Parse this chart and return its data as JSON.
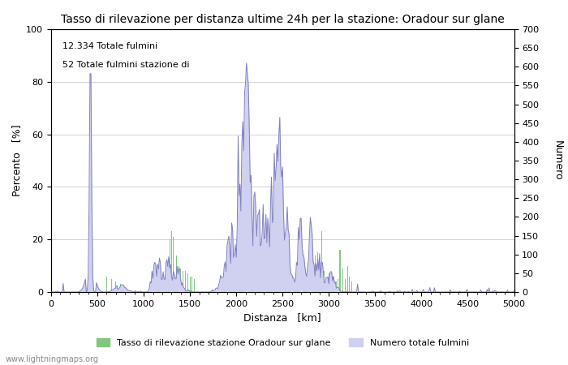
{
  "title": "Tasso di rilevazione per distanza ultime 24h per la stazione: Oradour sur glane",
  "xlabel": "Distanza   [km]",
  "ylabel_left": "Percento   [%]",
  "ylabel_right": "Numero",
  "annotation1": "12.334 Totale fulmini",
  "annotation2": "52 Totale fulmini stazione di",
  "watermark": "www.lightningmaps.org",
  "legend_green": "Tasso di rilevazione stazione Oradour sur glane",
  "legend_blue": "Numero totale fulmini",
  "xlim": [
    0,
    5000
  ],
  "ylim_left": [
    0,
    100
  ],
  "ylim_right": [
    0,
    700
  ],
  "background_color": "#ffffff",
  "grid_color": "#c0c0c0",
  "blue_fill_color": "#d0d0f0",
  "blue_line_color": "#8080c0",
  "green_bar_color": "#80c880",
  "title_fontsize": 10,
  "axis_fontsize": 9,
  "tick_fontsize": 8,
  "yticks_left": [
    0,
    20,
    40,
    60,
    80,
    100
  ],
  "yticks_right": [
    0,
    50,
    100,
    150,
    200,
    250,
    300,
    350,
    400,
    450,
    500,
    550,
    600,
    650,
    700
  ],
  "xticks": [
    0,
    500,
    1000,
    1500,
    2000,
    2500,
    3000,
    3500,
    4000,
    4500,
    5000
  ]
}
